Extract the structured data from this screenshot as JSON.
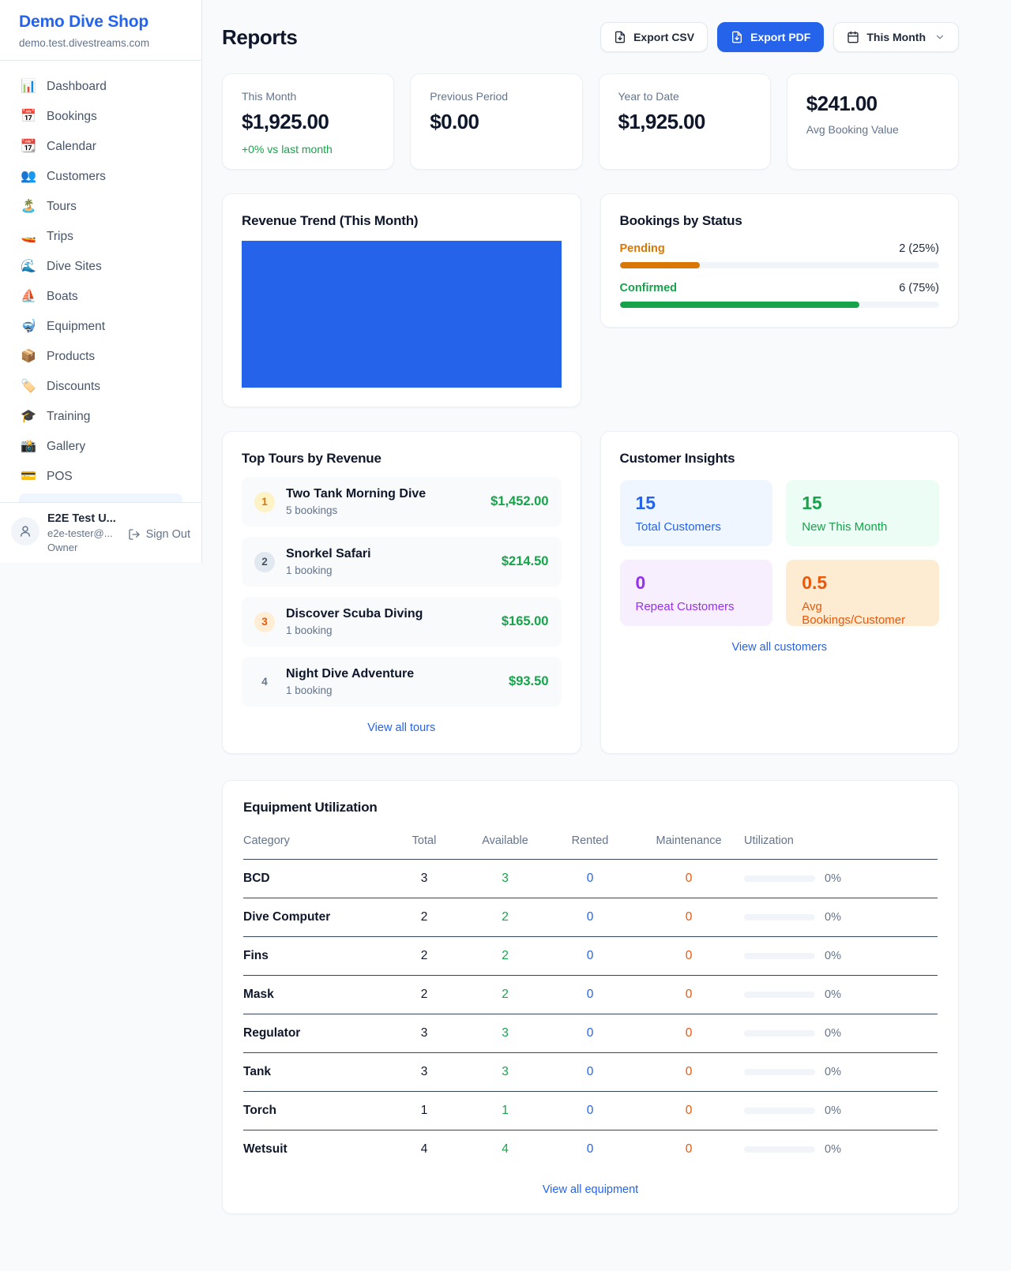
{
  "theme": {
    "brand_blue": "#2563eb",
    "green": "#16a34a",
    "orange_pending": "#d97706",
    "orange_deep": "#ea580c",
    "purple": "#9333ea",
    "page_bg": "#f8fafc"
  },
  "sidebar": {
    "shop_name": "Demo Dive Shop",
    "shop_domain": "demo.test.divestreams.com",
    "items": [
      {
        "icon": "📊",
        "label": "Dashboard"
      },
      {
        "icon": "📅",
        "label": "Bookings"
      },
      {
        "icon": "📆",
        "label": "Calendar"
      },
      {
        "icon": "👥",
        "label": "Customers"
      },
      {
        "icon": "🏝️",
        "label": "Tours"
      },
      {
        "icon": "🚤",
        "label": "Trips"
      },
      {
        "icon": "🌊",
        "label": "Dive Sites"
      },
      {
        "icon": "⛵",
        "label": "Boats"
      },
      {
        "icon": "🤿",
        "label": "Equipment"
      },
      {
        "icon": "📦",
        "label": "Products"
      },
      {
        "icon": "🏷️",
        "label": "Discounts"
      },
      {
        "icon": "🎓",
        "label": "Training"
      },
      {
        "icon": "📸",
        "label": "Gallery"
      },
      {
        "icon": "💳",
        "label": "POS"
      }
    ],
    "user": {
      "name": "E2E Test U...",
      "email": "e2e-tester@...",
      "role": "Owner",
      "sign_out_label": "Sign Out"
    }
  },
  "header": {
    "title": "Reports",
    "export_csv_label": "Export CSV",
    "export_pdf_label": "Export PDF",
    "period_label": "This Month"
  },
  "stats": {
    "this_month": {
      "label": "This Month",
      "value": "$1,925.00",
      "change": "+0% vs last month"
    },
    "previous_period": {
      "label": "Previous Period",
      "value": "$0.00"
    },
    "year_to_date": {
      "label": "Year to Date",
      "value": "$1,925.00"
    },
    "avg_booking": {
      "label": "Avg Booking Value",
      "value": "$241.00"
    }
  },
  "revenue_trend": {
    "title": "Revenue Trend (This Month)",
    "bar_color": "#2563eb"
  },
  "bookings_by_status": {
    "title": "Bookings by Status",
    "rows": [
      {
        "label": "Pending",
        "count_text": "2 (25%)",
        "count": 2,
        "percent": 25,
        "color": "#d97706"
      },
      {
        "label": "Confirmed",
        "count_text": "6 (75%)",
        "count": 6,
        "percent": 75,
        "color": "#16a34a"
      }
    ]
  },
  "top_tours": {
    "title": "Top Tours by Revenue",
    "view_all_label": "View all tours",
    "rows": [
      {
        "rank": "1",
        "name": "Two Tank Morning Dive",
        "bookings": "5 bookings",
        "revenue": "$1,452.00"
      },
      {
        "rank": "2",
        "name": "Snorkel Safari",
        "bookings": "1 booking",
        "revenue": "$214.50"
      },
      {
        "rank": "3",
        "name": "Discover Scuba Diving",
        "bookings": "1 booking",
        "revenue": "$165.00"
      },
      {
        "rank": "4",
        "name": "Night Dive Adventure",
        "bookings": "1 booking",
        "revenue": "$93.50"
      }
    ]
  },
  "customer_insights": {
    "title": "Customer Insights",
    "view_all_label": "View all customers",
    "tiles": [
      {
        "value": "15",
        "label": "Total Customers",
        "color": "#2563eb",
        "bg": "#eff6ff"
      },
      {
        "value": "15",
        "label": "New This Month",
        "color": "#16a34a",
        "bg": "#ecfdf5"
      },
      {
        "value": "0",
        "label": "Repeat Customers",
        "color": "#9333ea",
        "bg": "#f7eefe"
      },
      {
        "value": "0.5",
        "label": "Avg Bookings/Customer",
        "color": "#ea580c",
        "bg": "#fdebd2"
      }
    ]
  },
  "equipment": {
    "title": "Equipment Utilization",
    "view_all_label": "View all equipment",
    "columns": {
      "category": "Category",
      "total": "Total",
      "available": "Available",
      "rented": "Rented",
      "maintenance": "Maintenance",
      "utilization": "Utilization"
    },
    "rows": [
      {
        "category": "BCD",
        "total": "3",
        "available": "3",
        "rented": "0",
        "maintenance": "0",
        "utilization": "0%",
        "utilization_percent": 0
      },
      {
        "category": "Dive Computer",
        "total": "2",
        "available": "2",
        "rented": "0",
        "maintenance": "0",
        "utilization": "0%",
        "utilization_percent": 0
      },
      {
        "category": "Fins",
        "total": "2",
        "available": "2",
        "rented": "0",
        "maintenance": "0",
        "utilization": "0%",
        "utilization_percent": 0
      },
      {
        "category": "Mask",
        "total": "2",
        "available": "2",
        "rented": "0",
        "maintenance": "0",
        "utilization": "0%",
        "utilization_percent": 0
      },
      {
        "category": "Regulator",
        "total": "3",
        "available": "3",
        "rented": "0",
        "maintenance": "0",
        "utilization": "0%",
        "utilization_percent": 0
      },
      {
        "category": "Tank",
        "total": "3",
        "available": "3",
        "rented": "0",
        "maintenance": "0",
        "utilization": "0%",
        "utilization_percent": 0
      },
      {
        "category": "Torch",
        "total": "1",
        "available": "1",
        "rented": "0",
        "maintenance": "0",
        "utilization": "0%",
        "utilization_percent": 0
      },
      {
        "category": "Wetsuit",
        "total": "4",
        "available": "4",
        "rented": "0",
        "maintenance": "0",
        "utilization": "0%",
        "utilization_percent": 0
      }
    ]
  }
}
